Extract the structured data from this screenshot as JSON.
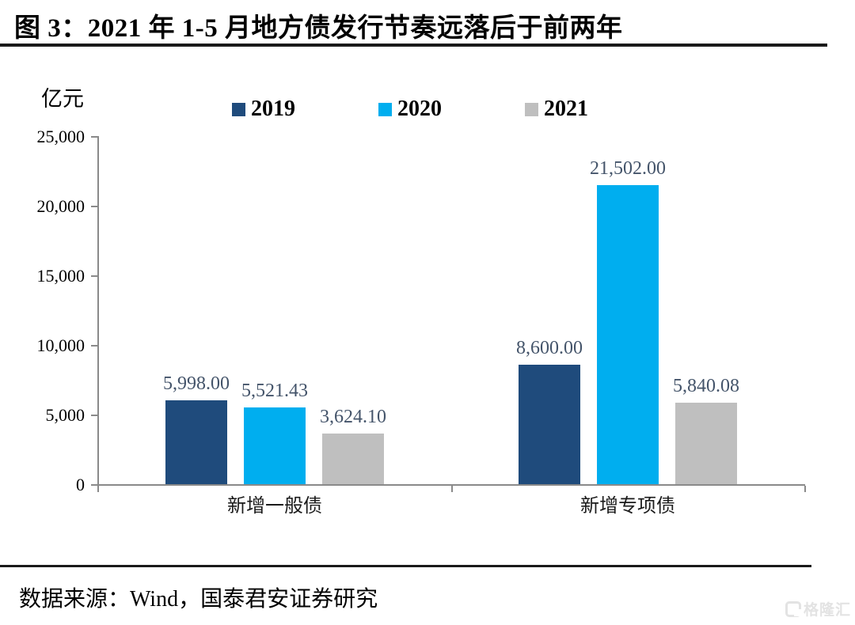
{
  "header": {
    "title": "图 3：2021 年 1-5 月地方债发行节奏远落后于前两年"
  },
  "chart_data": {
    "type": "bar",
    "unit_label": "亿元",
    "categories": [
      "新增一般债",
      "新增专项债"
    ],
    "series": [
      {
        "name": "2019",
        "color": "#1F4B7C",
        "values": [
          5998.0,
          8600.0
        ],
        "labels": [
          "5,998.00",
          "8,600.00"
        ]
      },
      {
        "name": "2020",
        "color": "#00AEEF",
        "values": [
          5521.43,
          21502.0
        ],
        "labels": [
          "5,521.43",
          "21,502.00"
        ]
      },
      {
        "name": "2021",
        "color": "#BFBFBF",
        "values": [
          3624.1,
          5840.08
        ],
        "labels": [
          "3,624.10",
          "5,840.08"
        ]
      }
    ],
    "ylim": [
      0,
      25000
    ],
    "y_ticks": [
      {
        "value": 0,
        "label": "0"
      },
      {
        "value": 5000,
        "label": "5,000"
      },
      {
        "value": 10000,
        "label": "10,000"
      },
      {
        "value": 15000,
        "label": "15,000"
      },
      {
        "value": 20000,
        "label": "20,000"
      },
      {
        "value": 25000,
        "label": "25,000"
      }
    ],
    "legend_position": "top",
    "grid": false
  },
  "footer": {
    "source": "数据来源：Wind，国泰君安证券研究"
  },
  "watermark": {
    "text": "格隆汇"
  }
}
